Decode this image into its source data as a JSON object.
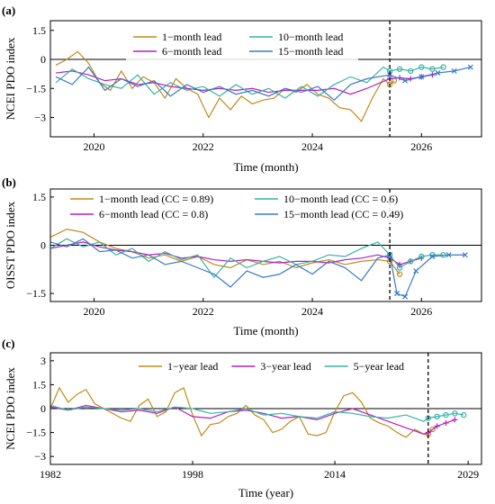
{
  "panels": [
    {
      "panel_label": "(a)",
      "xlabel": "Time (month)",
      "ylabel": "NCEI PDO index",
      "xticks": [
        2020,
        2022,
        2024,
        2026
      ],
      "yticks": [
        "1.5",
        "0",
        "−1.5",
        "−3"
      ],
      "x_range": [
        2019.2,
        2027.1
      ],
      "y_range": [
        -4.0,
        2.0
      ],
      "forecast_start": 2025.42,
      "legend_cols": 2
    },
    {
      "panel_label": "(b)",
      "xlabel": "Time (month)",
      "ylabel": "OISST PDO index",
      "xticks": [
        2020,
        2022,
        2024,
        2026
      ],
      "yticks": [
        "1.5",
        "0",
        "−1.5"
      ],
      "x_range": [
        2019.2,
        2027.1
      ],
      "y_range": [
        -1.75,
        1.75
      ],
      "forecast_start": 2025.42,
      "legend_cols": 2
    },
    {
      "panel_label": "(c)",
      "xlabel": "Time (year)",
      "ylabel": "NCEI PDO index",
      "xticks": [
        1982,
        1998,
        2014,
        2029
      ],
      "yticks": [
        "3",
        "1.5",
        "0",
        "−1.5",
        "−3"
      ],
      "x_range": [
        1982,
        2030.5
      ],
      "y_range": [
        -3.5,
        3.5
      ],
      "forecast_start": 2024.5,
      "legend_cols": 3
    }
  ],
  "chart_data": [
    {
      "type": "line",
      "panel": "(a)",
      "title": "",
      "xlabel": "Time (month)",
      "ylabel": "NCEI PDO index",
      "xlim": [
        2019.2,
        2027.1
      ],
      "ylim": [
        -4.0,
        2.0
      ],
      "forecast_start": 2025.42,
      "series": [
        {
          "name": "1−month lead",
          "color": "#C08A1C",
          "marker": "o",
          "x": [
            2019.3,
            2019.5,
            2019.7,
            2019.9,
            2020.1,
            2020.3,
            2020.5,
            2020.7,
            2020.9,
            2021.1,
            2021.3,
            2021.5,
            2021.7,
            2021.9,
            2022.1,
            2022.3,
            2022.5,
            2022.7,
            2022.9,
            2023.1,
            2023.3,
            2023.5,
            2023.7,
            2023.9,
            2024.1,
            2024.3,
            2024.5,
            2024.7,
            2024.9,
            2025.1,
            2025.3,
            2025.42,
            2025.5
          ],
          "y": [
            -0.3,
            0.0,
            0.4,
            -0.2,
            -1.2,
            -1.6,
            -0.6,
            -1.5,
            -0.9,
            -1.2,
            -2.0,
            -1.0,
            -1.5,
            -1.8,
            -3.0,
            -2.0,
            -2.6,
            -1.9,
            -2.3,
            -2.1,
            -2.0,
            -1.5,
            -1.7,
            -1.3,
            -1.8,
            -2.0,
            -2.5,
            -2.6,
            -3.2,
            -2.0,
            -1.0,
            -1.3,
            -1.1
          ]
        },
        {
          "name": "6−month lead",
          "color": "#B51EC2",
          "marker": "+",
          "x": [
            2019.3,
            2019.6,
            2019.9,
            2020.2,
            2020.5,
            2020.8,
            2021.1,
            2021.4,
            2021.7,
            2022.0,
            2022.3,
            2022.6,
            2022.9,
            2023.2,
            2023.5,
            2023.8,
            2024.1,
            2024.4,
            2024.7,
            2025.0,
            2025.42,
            2025.6,
            2025.8,
            2026.0,
            2026.2
          ],
          "y": [
            -0.7,
            -0.6,
            -0.8,
            -1.1,
            -1.0,
            -1.3,
            -1.2,
            -1.4,
            -1.5,
            -1.6,
            -1.5,
            -1.6,
            -1.5,
            -1.7,
            -1.6,
            -1.6,
            -1.6,
            -1.5,
            -1.8,
            -1.5,
            -1.0,
            -0.95,
            -1.0,
            -0.9,
            -0.8
          ]
        },
        {
          "name": "10−month lead",
          "color": "#36B3A5",
          "marker": "o",
          "x": [
            2019.3,
            2019.6,
            2019.9,
            2020.2,
            2020.5,
            2020.8,
            2021.1,
            2021.4,
            2021.7,
            2022.0,
            2022.3,
            2022.6,
            2022.9,
            2023.2,
            2023.5,
            2023.8,
            2024.1,
            2024.4,
            2024.7,
            2025.0,
            2025.3,
            2025.42,
            2025.6,
            2025.8,
            2026.0,
            2026.2,
            2026.4
          ],
          "y": [
            -1.2,
            -0.5,
            -1.0,
            -1.3,
            -1.5,
            -0.8,
            -1.8,
            -1.2,
            -1.6,
            -1.4,
            -1.9,
            -1.3,
            -1.8,
            -1.5,
            -2.0,
            -1.4,
            -1.9,
            -1.3,
            -0.9,
            -1.2,
            -0.4,
            -0.6,
            -0.5,
            -0.6,
            -0.4,
            -0.5,
            -0.4
          ]
        },
        {
          "name": "15−month lead",
          "color": "#3A78C8",
          "marker": "x",
          "x": [
            2019.3,
            2019.6,
            2019.9,
            2020.2,
            2020.5,
            2020.8,
            2021.1,
            2021.4,
            2021.7,
            2022.0,
            2022.3,
            2022.6,
            2022.9,
            2023.2,
            2023.5,
            2023.8,
            2024.1,
            2024.4,
            2024.7,
            2025.0,
            2025.42,
            2025.7,
            2026.0,
            2026.3,
            2026.6,
            2026.9
          ],
          "y": [
            -0.9,
            -1.3,
            -0.4,
            -1.6,
            -1.0,
            -1.4,
            -1.1,
            -1.9,
            -1.3,
            -1.7,
            -1.4,
            -1.8,
            -1.6,
            -1.9,
            -1.5,
            -1.7,
            -1.4,
            -2.1,
            -1.3,
            -1.0,
            -0.8,
            -1.1,
            -0.9,
            -0.7,
            -0.6,
            -0.4
          ]
        }
      ]
    },
    {
      "type": "line",
      "panel": "(b)",
      "title": "",
      "xlabel": "Time (month)",
      "ylabel": "OISST PDO index",
      "xlim": [
        2019.2,
        2027.1
      ],
      "ylim": [
        -1.75,
        1.75
      ],
      "forecast_start": 2025.42,
      "series": [
        {
          "name": "1−month lead (CC = 0.89)",
          "color": "#C08A1C",
          "marker": "o",
          "x": [
            2019.2,
            2019.5,
            2019.8,
            2020.1,
            2020.4,
            2020.7,
            2021.0,
            2021.3,
            2021.6,
            2021.9,
            2022.2,
            2022.5,
            2022.8,
            2023.1,
            2023.4,
            2023.7,
            2024.0,
            2024.3,
            2024.6,
            2024.9,
            2025.2,
            2025.42,
            2025.6
          ],
          "y": [
            0.25,
            0.5,
            0.4,
            0.1,
            -0.1,
            -0.2,
            -0.4,
            -0.3,
            -0.5,
            -0.35,
            -0.6,
            -0.7,
            -0.45,
            -0.6,
            -0.5,
            -0.7,
            -0.55,
            -0.45,
            -0.6,
            -0.5,
            -0.45,
            -0.5,
            -0.9
          ]
        },
        {
          "name": "6−month lead (CC = 0.8)",
          "color": "#B51EC2",
          "marker": "+",
          "x": [
            2019.2,
            2019.5,
            2019.8,
            2020.1,
            2020.4,
            2020.7,
            2021.0,
            2021.3,
            2021.6,
            2021.9,
            2022.2,
            2022.5,
            2022.8,
            2023.1,
            2023.4,
            2023.7,
            2024.0,
            2024.3,
            2024.6,
            2024.9,
            2025.2,
            2025.42,
            2025.6,
            2025.8,
            2026.0
          ],
          "y": [
            -0.1,
            0.0,
            0.1,
            -0.05,
            -0.15,
            -0.2,
            -0.3,
            -0.25,
            -0.4,
            -0.35,
            -0.45,
            -0.5,
            -0.45,
            -0.5,
            -0.55,
            -0.5,
            -0.5,
            -0.55,
            -0.45,
            -0.4,
            -0.3,
            -0.4,
            -0.6,
            -0.5,
            -0.4
          ]
        },
        {
          "name": "10−month lead (CC = 0.6)",
          "color": "#36B3A5",
          "marker": "o",
          "x": [
            2019.2,
            2019.5,
            2019.8,
            2020.1,
            2020.4,
            2020.7,
            2021.0,
            2021.3,
            2021.6,
            2021.9,
            2022.2,
            2022.5,
            2022.8,
            2023.1,
            2023.4,
            2023.7,
            2024.0,
            2024.3,
            2024.6,
            2024.9,
            2025.2,
            2025.42,
            2025.6,
            2025.8,
            2026.0,
            2026.2,
            2026.4
          ],
          "y": [
            -0.1,
            0.2,
            -0.05,
            0.1,
            -0.3,
            -0.1,
            -0.5,
            -0.2,
            -0.45,
            -0.3,
            -1.0,
            -0.4,
            -0.7,
            -0.5,
            -0.35,
            -0.6,
            -0.5,
            -0.3,
            -0.35,
            -0.1,
            0.1,
            -0.3,
            -0.7,
            -0.5,
            -0.35,
            -0.3,
            -0.3
          ]
        },
        {
          "name": "15−month lead (CC = 0.49)",
          "color": "#3A78C8",
          "marker": "x",
          "x": [
            2019.2,
            2019.5,
            2019.8,
            2020.1,
            2020.4,
            2020.7,
            2021.0,
            2021.3,
            2021.6,
            2021.9,
            2022.2,
            2022.5,
            2022.8,
            2023.1,
            2023.4,
            2023.7,
            2024.0,
            2024.3,
            2024.6,
            2024.9,
            2025.2,
            2025.42,
            2025.55,
            2025.7,
            2025.9,
            2026.2,
            2026.5,
            2026.8
          ],
          "y": [
            0.1,
            -0.05,
            0.2,
            -0.2,
            -0.15,
            -0.4,
            -0.3,
            -0.6,
            -0.5,
            -0.7,
            -0.9,
            -1.3,
            -0.8,
            -1.0,
            -0.9,
            -0.6,
            -0.9,
            -0.5,
            -0.7,
            -1.1,
            -0.4,
            -0.3,
            -1.5,
            -1.6,
            -0.8,
            -0.35,
            -0.3,
            -0.3
          ]
        }
      ]
    },
    {
      "type": "line",
      "panel": "(c)",
      "title": "",
      "xlabel": "Time (year)",
      "ylabel": "NCEI PDO index",
      "xlim": [
        1982,
        2030.5
      ],
      "ylim": [
        -3.5,
        3.5
      ],
      "forecast_start": 2024.5,
      "series": [
        {
          "name": "1−year lead",
          "color": "#C08A1C",
          "marker": "o",
          "x": [
            1982,
            1983,
            1984,
            1985,
            1986,
            1987,
            1988,
            1989,
            1990,
            1991,
            1992,
            1993,
            1994,
            1995,
            1996,
            1997,
            1998,
            1999,
            2000,
            2001,
            2002,
            2003,
            2004,
            2005,
            2006,
            2007,
            2008,
            2009,
            2010,
            2011,
            2012,
            2013,
            2014,
            2015,
            2016,
            2017,
            2018,
            2019,
            2020,
            2021,
            2022,
            2023,
            2024,
            2024.5,
            2025
          ],
          "y": [
            0.0,
            1.3,
            0.4,
            0.9,
            1.2,
            0.3,
            0.0,
            -0.3,
            -0.6,
            -0.8,
            0.2,
            0.6,
            -0.5,
            -0.2,
            1.0,
            1.3,
            -0.4,
            -1.7,
            -1.0,
            -0.9,
            -0.5,
            -0.3,
            0.2,
            -0.4,
            -0.7,
            -1.5,
            -1.3,
            -0.8,
            -0.5,
            -1.6,
            -1.7,
            -1.5,
            -0.2,
            0.8,
            1.0,
            0.4,
            -0.6,
            -0.9,
            -1.1,
            -1.5,
            -1.8,
            -1.3,
            -1.6,
            -1.6,
            -1.3
          ]
        },
        {
          "name": "3−year lead",
          "color": "#B51EC2",
          "marker": "+",
          "x": [
            1982,
            1984,
            1986,
            1988,
            1990,
            1992,
            1994,
            1996,
            1998,
            2000,
            2002,
            2004,
            2006,
            2008,
            2010,
            2012,
            2014,
            2016,
            2018,
            2020,
            2022,
            2024,
            2024.5,
            2025.5,
            2026.5,
            2027.5
          ],
          "y": [
            0.1,
            -0.1,
            0.2,
            0.0,
            -0.2,
            -0.1,
            -0.3,
            0.1,
            -0.5,
            -0.6,
            -0.2,
            -0.1,
            -0.3,
            -0.6,
            -0.5,
            -0.7,
            -0.3,
            0.0,
            -0.4,
            -0.8,
            -1.2,
            -1.6,
            -1.5,
            -1.1,
            -0.9,
            -0.7
          ]
        },
        {
          "name": "5−year lead",
          "color": "#36B3A5",
          "marker": "o",
          "x": [
            1982,
            1984,
            1986,
            1988,
            1990,
            1992,
            1994,
            1996,
            1998,
            2000,
            2002,
            2004,
            2006,
            2008,
            2010,
            2012,
            2014,
            2016,
            2018,
            2020,
            2022,
            2024,
            2024.5,
            2025.5,
            2026.5,
            2027.5,
            2028.5
          ],
          "y": [
            0.2,
            -0.1,
            0.1,
            0.0,
            -0.1,
            0.0,
            -0.2,
            0.1,
            0.0,
            -0.3,
            -0.2,
            0.0,
            -0.4,
            -0.3,
            -0.5,
            -0.6,
            -0.2,
            -0.3,
            -0.5,
            -0.6,
            -0.4,
            -0.8,
            -0.6,
            -0.5,
            -0.4,
            -0.3,
            -0.4
          ]
        }
      ]
    }
  ]
}
